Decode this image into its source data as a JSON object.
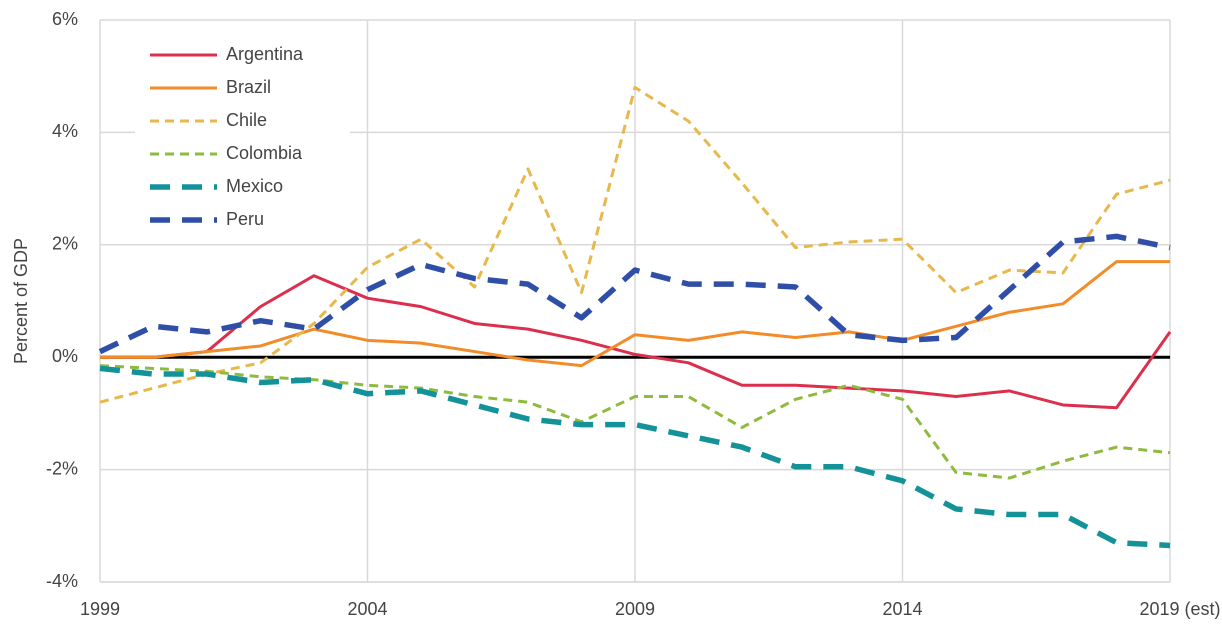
{
  "chart_data": {
    "type": "line",
    "y_label": "Percent of GDP",
    "x": [
      1999,
      2000,
      2001,
      2002,
      2003,
      2004,
      2005,
      2006,
      2007,
      2008,
      2009,
      2010,
      2011,
      2012,
      2013,
      2014,
      2015,
      2016,
      2017,
      2018,
      2019
    ],
    "series": [
      {
        "name": "Argentina",
        "color": "#dc2f4d",
        "line_style": "solid",
        "values": [
          0,
          0,
          0.1,
          0.9,
          1.45,
          1.05,
          0.9,
          0.6,
          0.5,
          0.3,
          0.05,
          -0.1,
          -0.5,
          -0.5,
          -0.55,
          -0.6,
          -0.7,
          -0.6,
          -0.85,
          -0.9,
          0.45
        ]
      },
      {
        "name": "Brazil",
        "color": "#f28c28",
        "line_style": "solid",
        "values": [
          0,
          0,
          0.1,
          0.2,
          0.5,
          0.3,
          0.25,
          0.1,
          -0.05,
          -0.15,
          0.4,
          0.3,
          0.45,
          0.35,
          0.45,
          0.3,
          0.55,
          0.8,
          0.95,
          1.7,
          1.7
        ]
      },
      {
        "name": "Chile",
        "color": "#e8b84b",
        "line_style": "dashed",
        "values": [
          -0.8,
          -0.55,
          -0.3,
          -0.1,
          0.6,
          1.6,
          2.1,
          1.25,
          3.35,
          1.15,
          4.8,
          4.2,
          3.1,
          1.95,
          2.05,
          2.1,
          1.15,
          1.55,
          1.5,
          2.9,
          3.15
        ]
      },
      {
        "name": "Colombia",
        "color": "#8ebb3e",
        "line_style": "dashed",
        "values": [
          -0.15,
          -0.2,
          -0.25,
          -0.35,
          -0.4,
          -0.5,
          -0.55,
          -0.7,
          -0.8,
          -1.15,
          -0.7,
          -0.7,
          -1.25,
          -0.75,
          -0.5,
          -0.75,
          -2.05,
          -2.15,
          -1.85,
          -1.6,
          -1.7
        ]
      },
      {
        "name": "Mexico",
        "color": "#13929a",
        "line_style": "long-dashed",
        "values": [
          -0.2,
          -0.3,
          -0.3,
          -0.45,
          -0.4,
          -0.65,
          -0.6,
          -0.85,
          -1.1,
          -1.2,
          -1.2,
          -1.4,
          -1.6,
          -1.95,
          -1.95,
          -2.2,
          -2.7,
          -2.8,
          -2.8,
          -3.3,
          -3.35
        ]
      },
      {
        "name": "Peru",
        "color": "#2f4ea8",
        "line_style": "long-dashed",
        "values": [
          0.1,
          0.55,
          0.45,
          0.65,
          0.5,
          1.2,
          1.65,
          1.4,
          1.3,
          0.7,
          1.55,
          1.3,
          1.3,
          1.25,
          0.4,
          0.3,
          0.35,
          1.2,
          2.05,
          2.15,
          1.95
        ]
      }
    ],
    "xlim": [
      1999,
      2019
    ],
    "xticks": [
      1999,
      2004,
      2009,
      2014,
      {
        "value": 2019,
        "label": "2019 (est)"
      }
    ],
    "ylim": [
      -4,
      6
    ],
    "yticks": [
      {
        "value": -4,
        "label": "-4%"
      },
      {
        "value": -2,
        "label": "-2%"
      },
      {
        "value": 0,
        "label": "0%"
      },
      {
        "value": 2,
        "label": "2%"
      },
      {
        "value": 4,
        "label": "4%"
      },
      {
        "value": 6,
        "label": "6%"
      }
    ],
    "reference_line": 0,
    "grid": true,
    "legend": "top-left"
  }
}
